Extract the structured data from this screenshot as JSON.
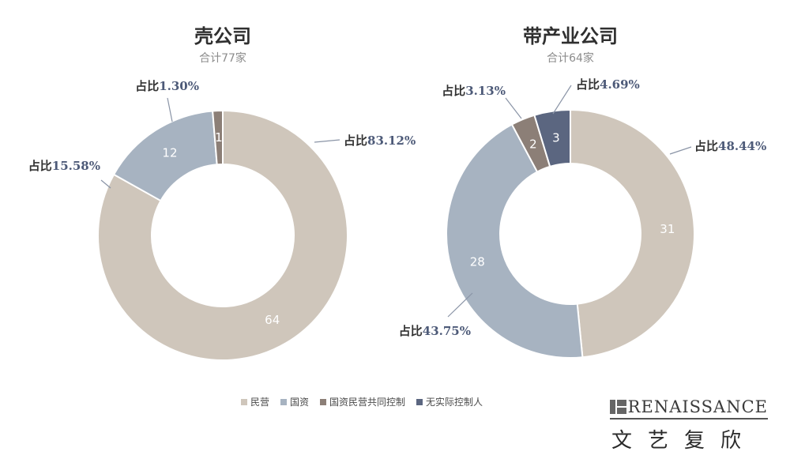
{
  "chart_data": [
    {
      "type": "donut",
      "title": "壳公司",
      "subtitle": "合计77家",
      "slices": [
        {
          "name": "民营",
          "value": 64,
          "label": "64",
          "pct_prefix": "占比",
          "pct_value": "83.12%",
          "color": "#cfc6bb"
        },
        {
          "name": "国资",
          "value": 12,
          "label": "12",
          "pct_prefix": "占比",
          "pct_value": "15.58%",
          "color": "#a7b3c1"
        },
        {
          "name": "国资民营共同控制",
          "value": 1,
          "label": "1",
          "pct_prefix": "占比",
          "pct_value": "1.30%",
          "color": "#8c7f77"
        }
      ]
    },
    {
      "type": "donut",
      "title": "带产业公司",
      "subtitle": "合计64家",
      "slices": [
        {
          "name": "民营",
          "value": 31,
          "label": "31",
          "pct_prefix": "占比",
          "pct_value": "48.44%",
          "color": "#cfc6bb"
        },
        {
          "name": "国资",
          "value": 28,
          "label": "28",
          "pct_prefix": "占比",
          "pct_value": "43.75%",
          "color": "#a7b3c1"
        },
        {
          "name": "国资民营共同控制",
          "value": 2,
          "label": "2",
          "pct_prefix": "占比",
          "pct_value": "3.13%",
          "color": "#8c7f77"
        },
        {
          "name": "无实际控制人",
          "value": 3,
          "label": "3",
          "pct_prefix": "占比",
          "pct_value": "4.69%",
          "color": "#5b6680"
        }
      ]
    }
  ],
  "legend": [
    {
      "label": "民营",
      "color": "#cfc6bb"
    },
    {
      "label": "国资",
      "color": "#a7b3c1"
    },
    {
      "label": "国资民营共同控制",
      "color": "#8c7f77"
    },
    {
      "label": "无实际控制人",
      "color": "#5b6680"
    }
  ],
  "brand": {
    "name_en": "RENAISSANCE",
    "name_cn": "文艺复欣"
  }
}
